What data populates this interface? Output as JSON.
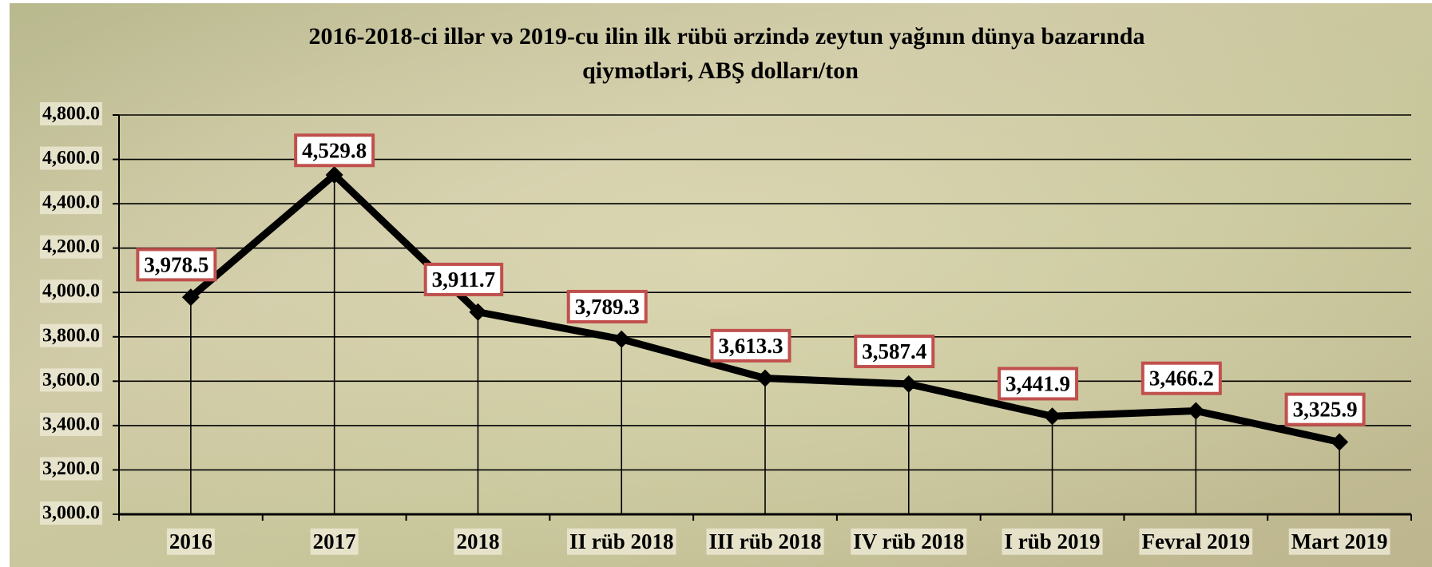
{
  "chart_data": {
    "type": "line",
    "title": "2016-2018-ci illər və 2019-cu ilin ilk rübü ərzində zeytun yağının dünya bazarında",
    "subtitle": "qiymətləri, ABŞ dolları/ton",
    "categories": [
      "2016",
      "2017",
      "2018",
      "II rüb 2018",
      "III rüb 2018",
      "IV rüb 2018",
      "I rüb 2019",
      "Fevral 2019",
      "Mart 2019"
    ],
    "series": [
      {
        "name": "Zeytun yağı",
        "color": "#000000",
        "values": [
          3978.5,
          4529.8,
          3911.7,
          3789.3,
          3613.3,
          3587.4,
          3441.9,
          3466.2,
          3325.9
        ],
        "value_labels": [
          "3,978.5",
          "4,529.8",
          "3,911.7",
          "3,789.3",
          "3,613.3",
          "3,587.4",
          "3,441.9",
          "3,466.2",
          "3,325.9"
        ]
      }
    ],
    "ylim": [
      3000,
      4800
    ],
    "yticks": [
      {
        "value": 3000,
        "label": "3,000.0"
      },
      {
        "value": 3200,
        "label": "3,200.0"
      },
      {
        "value": 3400,
        "label": "3,400.0"
      },
      {
        "value": 3600,
        "label": "3,600.0"
      },
      {
        "value": 3800,
        "label": "3,800.0"
      },
      {
        "value": 4000,
        "label": "4,000.0"
      },
      {
        "value": 4200,
        "label": "4,200.0"
      },
      {
        "value": 4400,
        "label": "4,400.0"
      },
      {
        "value": 4600,
        "label": "4,600.0"
      },
      {
        "value": 4800,
        "label": "4,800.0"
      }
    ],
    "grid": true,
    "label_border_color": "#c0504d"
  }
}
